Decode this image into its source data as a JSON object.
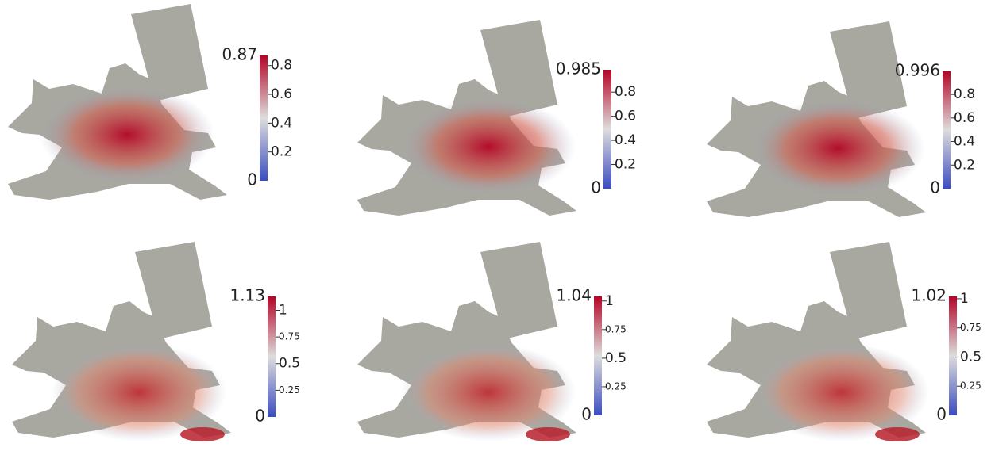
{
  "panels": [
    {
      "colorbar": {
        "range": [
          0,
          0.87
        ],
        "ticks": [
          0.2,
          0.4,
          0.6,
          0.8
        ]
      }
    },
    {
      "colorbar": {
        "range": [
          0,
          0.985
        ],
        "ticks": [
          0.2,
          0.4,
          0.6,
          0.8
        ]
      }
    },
    {
      "colorbar": {
        "range": [
          0,
          0.996
        ],
        "ticks": [
          0.2,
          0.4,
          0.6,
          0.8
        ]
      }
    },
    {
      "colorbar": {
        "range": [
          0,
          1.13
        ],
        "ticks": [
          0.25,
          0.5,
          0.75,
          1
        ]
      }
    },
    {
      "colorbar": {
        "range": [
          0,
          1.04
        ],
        "ticks": [
          0.25,
          0.5,
          0.75,
          1
        ]
      }
    },
    {
      "colorbar": {
        "range": [
          0,
          1.02
        ],
        "ticks": [
          0.25,
          0.5,
          0.75,
          1
        ]
      }
    }
  ]
}
